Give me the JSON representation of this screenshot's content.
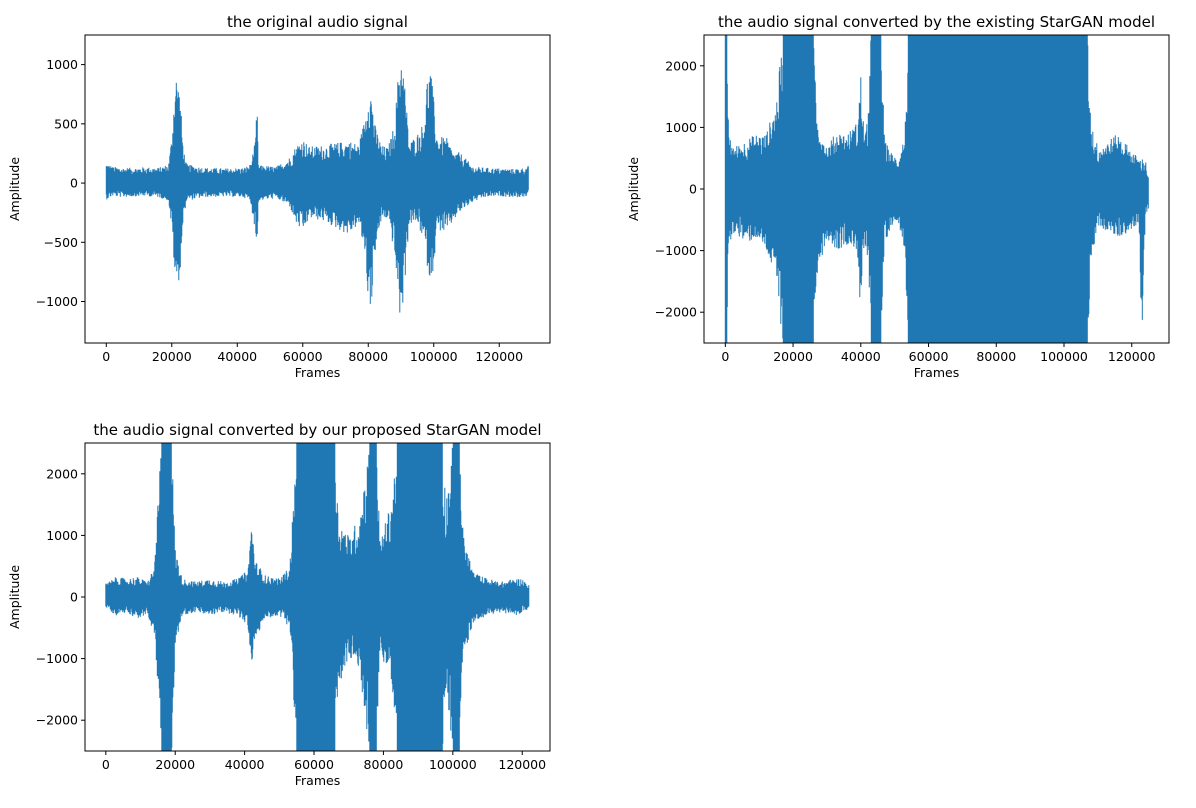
{
  "chart_data": [
    {
      "type": "line",
      "title": "the original audio signal",
      "xlabel": "Frames",
      "ylabel": "Amplitude",
      "xlim": [
        -6500,
        135500
      ],
      "ylim": [
        -1350,
        1250
      ],
      "xticks": [
        0,
        20000,
        40000,
        60000,
        80000,
        100000,
        120000
      ],
      "yticks": [
        -1000,
        -500,
        0,
        500,
        1000
      ],
      "series": [
        {
          "color": "#1f77b4"
        }
      ],
      "envelope": [
        [
          0,
          -140,
          170
        ],
        [
          2000,
          -110,
          140
        ],
        [
          5000,
          -120,
          130
        ],
        [
          8000,
          -115,
          130
        ],
        [
          12000,
          -110,
          135
        ],
        [
          16000,
          -120,
          130
        ],
        [
          19000,
          -150,
          160
        ],
        [
          20000,
          -400,
          400
        ],
        [
          21000,
          -820,
          880
        ],
        [
          21500,
          -900,
          940
        ],
        [
          22500,
          -780,
          760
        ],
        [
          23500,
          -320,
          300
        ],
        [
          24500,
          -150,
          160
        ],
        [
          30000,
          -120,
          130
        ],
        [
          36000,
          -115,
          125
        ],
        [
          42000,
          -120,
          130
        ],
        [
          44000,
          -160,
          160
        ],
        [
          45500,
          -400,
          350
        ],
        [
          46000,
          -620,
          690
        ],
        [
          46500,
          -150,
          150
        ],
        [
          52000,
          -130,
          140
        ],
        [
          56000,
          -200,
          220
        ],
        [
          58000,
          -350,
          320
        ],
        [
          60000,
          -420,
          380
        ],
        [
          62000,
          -300,
          310
        ],
        [
          66000,
          -320,
          320
        ],
        [
          70000,
          -380,
          340
        ],
        [
          74000,
          -440,
          360
        ],
        [
          77000,
          -350,
          330
        ],
        [
          79000,
          -600,
          550
        ],
        [
          80000,
          -1000,
          800
        ],
        [
          81000,
          -1060,
          780
        ],
        [
          82000,
          -600,
          500
        ],
        [
          84000,
          -320,
          320
        ],
        [
          86000,
          -300,
          300
        ],
        [
          88000,
          -600,
          500
        ],
        [
          89500,
          -1100,
          1050
        ],
        [
          90000,
          -1230,
          1130
        ],
        [
          91000,
          -900,
          900
        ],
        [
          92500,
          -350,
          340
        ],
        [
          95000,
          -340,
          420
        ],
        [
          97000,
          -500,
          520
        ],
        [
          98000,
          -700,
          900
        ],
        [
          99000,
          -850,
          980
        ],
        [
          100000,
          -700,
          700
        ],
        [
          101000,
          -400,
          400
        ],
        [
          104000,
          -420,
          380
        ],
        [
          106000,
          -320,
          260
        ],
        [
          108000,
          -250,
          260
        ],
        [
          112000,
          -160,
          140
        ],
        [
          116000,
          -120,
          130
        ],
        [
          120000,
          -110,
          125
        ],
        [
          124000,
          -120,
          120
        ],
        [
          128000,
          -120,
          130
        ],
        [
          129000,
          -80,
          150
        ]
      ]
    },
    {
      "type": "line",
      "title": "the audio signal converted by the existing StarGAN model",
      "xlabel": "Frames",
      "ylabel": "Amplitude",
      "xlim": [
        -6300,
        131000
      ],
      "ylim": [
        -2500,
        2500
      ],
      "xticks": [
        0,
        20000,
        40000,
        60000,
        80000,
        100000,
        120000
      ],
      "yticks": [
        -2000,
        -1000,
        0,
        1000,
        2000
      ],
      "series": [
        {
          "color": "#1f77b4"
        }
      ],
      "envelope": [
        [
          0,
          -2500,
          2500
        ],
        [
          500,
          -2500,
          2500
        ],
        [
          1000,
          -900,
          850
        ],
        [
          3000,
          -700,
          700
        ],
        [
          6000,
          -900,
          800
        ],
        [
          9000,
          -800,
          900
        ],
        [
          12000,
          -1000,
          900
        ],
        [
          15000,
          -1500,
          1400
        ],
        [
          17000,
          -2500,
          2500
        ],
        [
          26000,
          -2500,
          2500
        ],
        [
          27000,
          -1400,
          1200
        ],
        [
          30000,
          -800,
          700
        ],
        [
          33000,
          -1000,
          950
        ],
        [
          36000,
          -900,
          900
        ],
        [
          39000,
          -1000,
          1100
        ],
        [
          40000,
          -2200,
          1900
        ],
        [
          41000,
          -900,
          900
        ],
        [
          42000,
          -1200,
          1100
        ],
        [
          43000,
          -2500,
          2500
        ],
        [
          46000,
          -2500,
          2500
        ],
        [
          47000,
          -900,
          800
        ],
        [
          49000,
          -600,
          600
        ],
        [
          51000,
          -500,
          500
        ],
        [
          53000,
          -1000,
          900
        ],
        [
          54000,
          -2500,
          2500
        ],
        [
          107000,
          -2500,
          2500
        ],
        [
          108000,
          -1200,
          1100
        ],
        [
          110000,
          -600,
          700
        ],
        [
          113000,
          -700,
          800
        ],
        [
          116000,
          -800,
          900
        ],
        [
          119000,
          -700,
          700
        ],
        [
          122000,
          -600,
          500
        ],
        [
          123000,
          -2400,
          500
        ],
        [
          124000,
          -500,
          500
        ],
        [
          125000,
          -300,
          200
        ]
      ]
    },
    {
      "type": "line",
      "title": "the audio signal converted by our proposed StarGAN model",
      "xlabel": "Frames",
      "ylabel": "Amplitude",
      "xlim": [
        -6000,
        128000
      ],
      "ylim": [
        -2500,
        2500
      ],
      "xticks": [
        0,
        20000,
        40000,
        60000,
        80000,
        100000,
        120000
      ],
      "yticks": [
        -2000,
        -1000,
        0,
        1000,
        2000
      ],
      "series": [
        {
          "color": "#1f77b4"
        }
      ],
      "envelope": [
        [
          0,
          -180,
          220
        ],
        [
          3000,
          -300,
          330
        ],
        [
          6000,
          -250,
          300
        ],
        [
          9000,
          -350,
          330
        ],
        [
          12000,
          -300,
          250
        ],
        [
          14000,
          -600,
          500
        ],
        [
          16000,
          -2500,
          2500
        ],
        [
          19000,
          -2500,
          2500
        ],
        [
          20000,
          -800,
          800
        ],
        [
          22000,
          -300,
          300
        ],
        [
          26000,
          -250,
          250
        ],
        [
          30000,
          -300,
          300
        ],
        [
          34000,
          -250,
          250
        ],
        [
          38000,
          -300,
          300
        ],
        [
          41000,
          -500,
          450
        ],
        [
          42000,
          -1200,
          1300
        ],
        [
          43000,
          -700,
          600
        ],
        [
          46000,
          -350,
          350
        ],
        [
          50000,
          -300,
          300
        ],
        [
          53000,
          -500,
          500
        ],
        [
          55000,
          -2500,
          2500
        ],
        [
          66000,
          -2500,
          2500
        ],
        [
          67000,
          -1500,
          1300
        ],
        [
          70000,
          -1000,
          1000
        ],
        [
          73000,
          -1200,
          1300
        ],
        [
          76000,
          -2500,
          2500
        ],
        [
          78000,
          -2500,
          2500
        ],
        [
          79000,
          -1000,
          900
        ],
        [
          82000,
          -1200,
          1500
        ],
        [
          84000,
          -2500,
          2500
        ],
        [
          97000,
          -2500,
          2500
        ],
        [
          98000,
          -1500,
          1600
        ],
        [
          100000,
          -2500,
          2500
        ],
        [
          102000,
          -2500,
          2500
        ],
        [
          103000,
          -1000,
          1000
        ],
        [
          106000,
          -400,
          400
        ],
        [
          110000,
          -300,
          300
        ],
        [
          114000,
          -250,
          250
        ],
        [
          118000,
          -300,
          300
        ],
        [
          120000,
          -250,
          300
        ],
        [
          122000,
          -200,
          200
        ]
      ]
    }
  ]
}
